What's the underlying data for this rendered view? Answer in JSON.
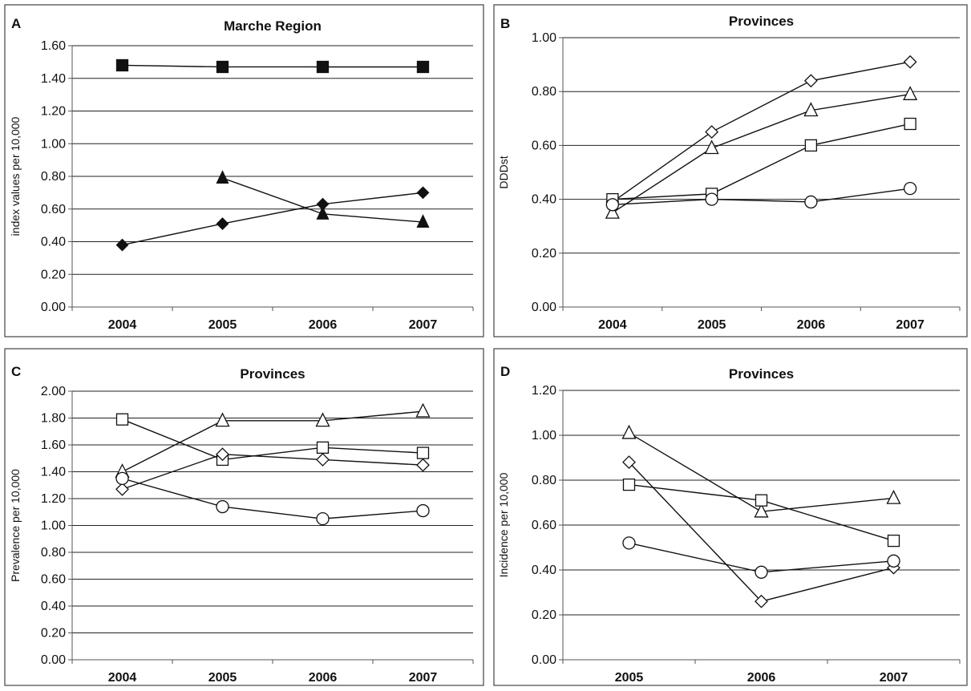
{
  "chart_data": [
    {
      "type": "line",
      "panel_letter": "A",
      "title": "Marche Region",
      "ylabel": "index values per 10,000",
      "xlabel": "",
      "categories": [
        "2004",
        "2005",
        "2006",
        "2007"
      ],
      "ylim": [
        0,
        1.6
      ],
      "yticks": [
        "0.00",
        "0.20",
        "0.40",
        "0.60",
        "0.80",
        "1.00",
        "1.20",
        "1.40",
        "1.60"
      ],
      "grid": true,
      "series": [
        {
          "marker": "square",
          "fill": "filled",
          "values": [
            1.48,
            1.47,
            1.47,
            1.47
          ]
        },
        {
          "marker": "triangle",
          "fill": "filled",
          "values": [
            null,
            0.79,
            0.57,
            0.52
          ]
        },
        {
          "marker": "diamond",
          "fill": "filled",
          "values": [
            0.38,
            0.51,
            0.63,
            0.7
          ]
        }
      ]
    },
    {
      "type": "line",
      "panel_letter": "B",
      "title": "Provinces",
      "ylabel": "DDDst",
      "xlabel": "",
      "categories": [
        "2004",
        "2005",
        "2006",
        "2007"
      ],
      "ylim": [
        0,
        1.0
      ],
      "yticks": [
        "0.00",
        "0.20",
        "0.40",
        "0.60",
        "0.80",
        "1.00"
      ],
      "grid": true,
      "series": [
        {
          "marker": "diamond",
          "fill": "open",
          "values": [
            0.39,
            0.65,
            0.84,
            0.91
          ]
        },
        {
          "marker": "triangle",
          "fill": "open",
          "values": [
            0.35,
            0.59,
            0.73,
            0.79
          ]
        },
        {
          "marker": "square",
          "fill": "open",
          "values": [
            0.4,
            0.42,
            0.6,
            0.68
          ]
        },
        {
          "marker": "circle",
          "fill": "open",
          "values": [
            0.38,
            0.4,
            0.39,
            0.44
          ]
        }
      ]
    },
    {
      "type": "line",
      "panel_letter": "C",
      "title": "Provinces",
      "ylabel": "Prevalence per 10,000",
      "xlabel": "",
      "categories": [
        "2004",
        "2005",
        "2006",
        "2007"
      ],
      "ylim": [
        0,
        2.0
      ],
      "yticks": [
        "0.00",
        "0.20",
        "0.40",
        "0.60",
        "0.80",
        "1.00",
        "1.20",
        "1.40",
        "1.60",
        "1.80",
        "2.00"
      ],
      "grid": true,
      "series": [
        {
          "marker": "triangle",
          "fill": "open",
          "values": [
            1.4,
            1.78,
            1.78,
            1.85
          ]
        },
        {
          "marker": "square",
          "fill": "open",
          "values": [
            1.79,
            1.49,
            1.58,
            1.54
          ]
        },
        {
          "marker": "diamond",
          "fill": "open",
          "values": [
            1.27,
            1.53,
            1.49,
            1.45
          ]
        },
        {
          "marker": "circle",
          "fill": "open",
          "values": [
            1.35,
            1.14,
            1.05,
            1.11
          ]
        }
      ]
    },
    {
      "type": "line",
      "panel_letter": "D",
      "title": "Provinces",
      "ylabel": "Incidence per 10,000",
      "xlabel": "",
      "categories": [
        "2005",
        "2006",
        "2007"
      ],
      "ylim": [
        0,
        1.2
      ],
      "yticks": [
        "0.00",
        "0.20",
        "0.40",
        "0.60",
        "0.80",
        "1.00",
        "1.20"
      ],
      "grid": true,
      "series": [
        {
          "marker": "triangle",
          "fill": "open",
          "values": [
            1.01,
            0.66,
            0.72
          ]
        },
        {
          "marker": "diamond",
          "fill": "open",
          "values": [
            0.88,
            0.26,
            0.41
          ]
        },
        {
          "marker": "square",
          "fill": "open",
          "values": [
            0.78,
            0.71,
            0.53
          ]
        },
        {
          "marker": "circle",
          "fill": "open",
          "values": [
            0.52,
            0.39,
            0.44
          ]
        }
      ]
    }
  ]
}
